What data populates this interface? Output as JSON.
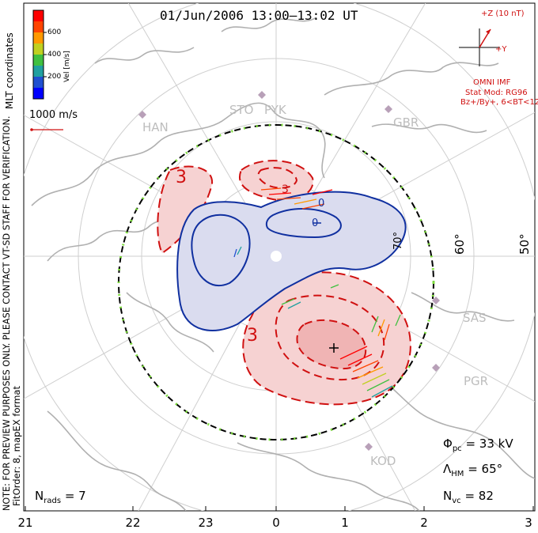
{
  "title": "01/Jun/2006 13:00–13:02 UT",
  "coord_label": "MLT coordinates",
  "watermark": "NOTE: FOR PREVIEW PURPOSES ONLY. PLEASE CONTACT VT-SD STAFF FOR VERIFICATION.",
  "fit_label": "FitOrder: 8, mapEX format",
  "velocity_scale": {
    "label": "Vel [m/s]",
    "ticks": [
      "600",
      "400",
      "200"
    ],
    "colors": [
      "#0000ff",
      "#2050d0",
      "#20a0a0",
      "#40c040",
      "#c0d020",
      "#ff9900",
      "#ff4400",
      "#ff0000"
    ]
  },
  "reference_vector": {
    "label": "1000 m/s",
    "color": "#d01010"
  },
  "imf": {
    "clock_label": "+Z (10 nT)",
    "y_label": "+Y",
    "source": "OMNI IMF",
    "stat_model": "Stat Mod: RG96",
    "conditions": "Bz+/By+, 6<BT<12",
    "color": "#d01010"
  },
  "stations": [
    "HAN",
    "STO",
    "PYK",
    "GBR",
    "SAS",
    "PGR",
    "KOD"
  ],
  "latitude_labels": [
    "60°",
    "50°",
    "70°"
  ],
  "contour_labels": [
    "3",
    "3",
    "3",
    "0",
    "0"
  ],
  "mlt_axis": [
    "21",
    "22",
    "23",
    "0",
    "1",
    "2",
    "3"
  ],
  "stats": {
    "potential_sym": "Φ",
    "potential_sub": "pc",
    "potential": "= 33 kV",
    "boundary_sym": "Λ",
    "boundary_sub": "HM",
    "boundary": "= 65°",
    "vectors_sym": "N",
    "vectors_sub": "vc",
    "vectors": "= 82",
    "radars_sym": "N",
    "radars_sub": "rads",
    "radars": "= 7"
  },
  "colors": {
    "positive_contour": "#d01010",
    "positive_fill": "#f6d2d2",
    "negative_contour": "#1030a0",
    "negative_fill": "#dadcef",
    "boundary": "#000000",
    "boundary_accent": "#80e040",
    "coastline": "#b0b0b0",
    "station_marker": "#b8a0b8"
  }
}
